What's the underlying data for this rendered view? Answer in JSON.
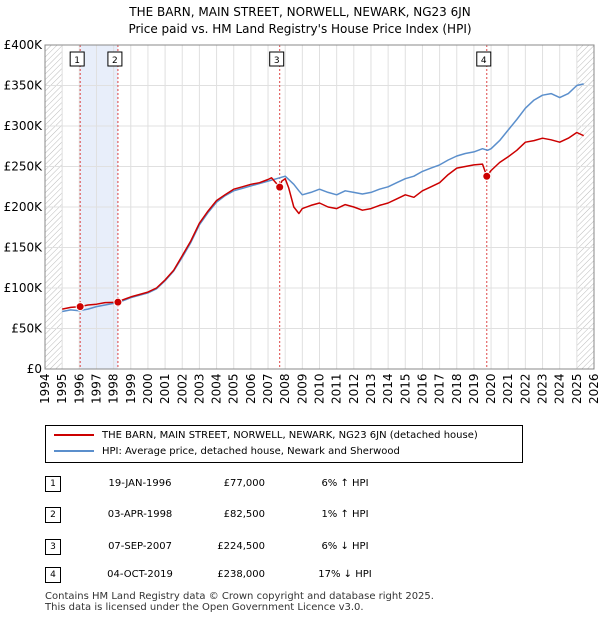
{
  "title_line1": "THE BARN, MAIN STREET, NORWELL, NEWARK, NG23 6JN",
  "title_line2": "Price paid vs. HM Land Registry's House Price Index (HPI)",
  "colors": {
    "property": "#cc0000",
    "hpi": "#5b8fcc",
    "shade": "#e8eefa",
    "marker_line": "#dd4444"
  },
  "chart_data": {
    "type": "line",
    "xlim": [
      1994,
      2026
    ],
    "ylim": [
      0,
      400000
    ],
    "x_ticks": [
      1994,
      1995,
      1996,
      1997,
      1998,
      1999,
      2000,
      2001,
      2002,
      2003,
      2004,
      2005,
      2006,
      2007,
      2008,
      2009,
      2010,
      2011,
      2012,
      2013,
      2014,
      2015,
      2016,
      2017,
      2018,
      2019,
      2020,
      2021,
      2022,
      2023,
      2024,
      2025,
      2026
    ],
    "y_ticks": [
      0,
      50000,
      100000,
      150000,
      200000,
      250000,
      300000,
      350000,
      400000
    ],
    "y_tick_labels": [
      "£0",
      "£50K",
      "£100K",
      "£150K",
      "£200K",
      "£250K",
      "£300K",
      "£350K",
      "£400K"
    ],
    "series": [
      {
        "name": "THE BARN, MAIN STREET, NORWELL, NEWARK, NG23 6JN (detached house)",
        "x": [
          1995.0,
          1995.5,
          1996.05,
          1996.5,
          1997.0,
          1997.5,
          1998.25,
          1998.5,
          1999.0,
          1999.5,
          2000.0,
          2000.5,
          2001.0,
          2001.5,
          2002.0,
          2002.5,
          2003.0,
          2003.5,
          2004.0,
          2004.5,
          2005.0,
          2005.5,
          2006.0,
          2006.5,
          2007.0,
          2007.2,
          2007.68,
          2007.8,
          2008.0,
          2008.2,
          2008.5,
          2008.8,
          2009.0,
          2009.5,
          2010.0,
          2010.5,
          2011.0,
          2011.5,
          2012.0,
          2012.5,
          2013.0,
          2013.5,
          2014.0,
          2014.5,
          2015.0,
          2015.5,
          2016.0,
          2016.5,
          2017.0,
          2017.5,
          2018.0,
          2018.5,
          2019.0,
          2019.5,
          2019.75,
          2020.0,
          2020.5,
          2021.0,
          2021.5,
          2022.0,
          2022.5,
          2023.0,
          2023.5,
          2024.0,
          2024.5,
          2025.0,
          2025.4
        ],
        "values": [
          74000,
          76000,
          77000,
          79000,
          80000,
          82000,
          82500,
          85000,
          89000,
          92000,
          95000,
          100000,
          110000,
          122000,
          140000,
          158000,
          180000,
          195000,
          208000,
          215000,
          222000,
          225000,
          228000,
          230000,
          234000,
          236000,
          224500,
          232000,
          235000,
          224000,
          200000,
          192000,
          198000,
          202000,
          205000,
          200000,
          198000,
          203000,
          200000,
          196000,
          198000,
          202000,
          205000,
          210000,
          215000,
          212000,
          220000,
          225000,
          230000,
          240000,
          248000,
          250000,
          252000,
          253000,
          238000,
          245000,
          255000,
          262000,
          270000,
          280000,
          282000,
          285000,
          283000,
          280000,
          285000,
          292000,
          288000
        ]
      },
      {
        "name": "HPI: Average price, detached house, Newark and Sherwood",
        "x": [
          1995.0,
          1995.5,
          1996.0,
          1996.5,
          1997.0,
          1997.5,
          1998.0,
          1998.5,
          1999.0,
          1999.5,
          2000.0,
          2000.5,
          2001.0,
          2001.5,
          2002.0,
          2002.5,
          2003.0,
          2003.5,
          2004.0,
          2004.5,
          2005.0,
          2005.5,
          2006.0,
          2006.5,
          2007.0,
          2007.5,
          2008.0,
          2008.5,
          2008.8,
          2009.0,
          2009.5,
          2010.0,
          2010.5,
          2011.0,
          2011.5,
          2012.0,
          2012.5,
          2013.0,
          2013.5,
          2014.0,
          2014.5,
          2015.0,
          2015.5,
          2016.0,
          2016.5,
          2017.0,
          2017.5,
          2018.0,
          2018.5,
          2019.0,
          2019.5,
          2019.8,
          2020.0,
          2020.5,
          2021.0,
          2021.5,
          2022.0,
          2022.5,
          2023.0,
          2023.5,
          2024.0,
          2024.5,
          2025.0,
          2025.4
        ],
        "values": [
          71000,
          73000,
          72000,
          74000,
          77000,
          79000,
          81000,
          84000,
          88000,
          91000,
          94000,
          99000,
          109000,
          121000,
          138000,
          156000,
          178000,
          193000,
          206000,
          214000,
          220000,
          223000,
          226000,
          229000,
          232000,
          235000,
          238000,
          228000,
          220000,
          215000,
          218000,
          222000,
          218000,
          215000,
          220000,
          218000,
          216000,
          218000,
          222000,
          225000,
          230000,
          235000,
          238000,
          244000,
          248000,
          252000,
          258000,
          263000,
          266000,
          268000,
          272000,
          270000,
          272000,
          282000,
          295000,
          308000,
          322000,
          332000,
          338000,
          340000,
          335000,
          340000,
          350000,
          352000
        ]
      }
    ],
    "transactions": [
      {
        "label": "1",
        "date": "19-JAN-1996",
        "x": 1996.05,
        "price": "£77,000",
        "value": 77000,
        "hpi": "6% ↑ HPI"
      },
      {
        "label": "2",
        "date": "03-APR-1998",
        "x": 1998.25,
        "price": "£82,500",
        "value": 82500,
        "hpi": "1% ↑ HPI"
      },
      {
        "label": "3",
        "date": "07-SEP-2007",
        "x": 2007.68,
        "price": "£224,500",
        "value": 224500,
        "hpi": "6% ↓ HPI"
      },
      {
        "label": "4",
        "date": "04-OCT-2019",
        "x": 2019.75,
        "price": "£238,000",
        "value": 238000,
        "hpi": "17% ↓ HPI"
      }
    ],
    "shade_ranges": [
      [
        1996.05,
        1998.25
      ]
    ],
    "hatch_before": 1995.0,
    "hatch_after": 2025.0
  },
  "legend": {
    "property": "THE BARN, MAIN STREET, NORWELL, NEWARK, NG23 6JN (detached house)",
    "hpi": "HPI: Average price, detached house, Newark and Sherwood"
  },
  "footer_line1": "Contains HM Land Registry data © Crown copyright and database right 2025.",
  "footer_line2": "This data is licensed under the Open Government Licence v3.0."
}
